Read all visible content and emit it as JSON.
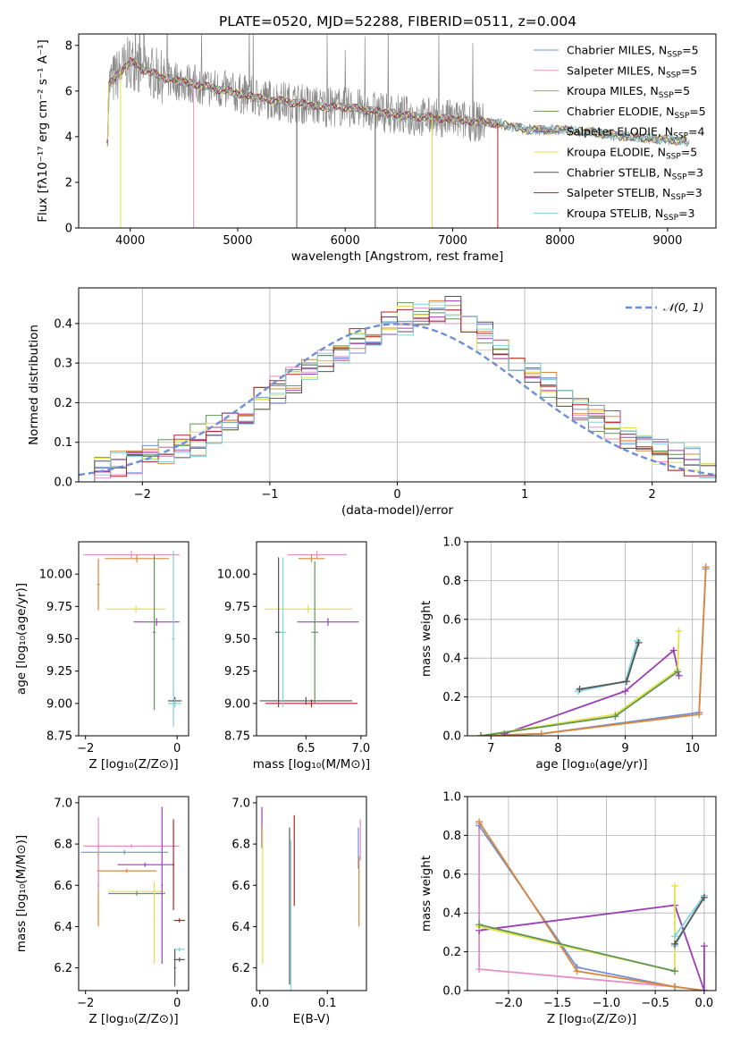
{
  "title": "PLATE=0520, MJD=52288, FIBERID=0511, z=0.004",
  "colors": {
    "chabrier_miles": "#6f8fd6",
    "salpeter_miles": "#e38fc6",
    "kroupa_miles": "#d9883a",
    "chabrier_elodie": "#5e9455",
    "salpeter_elodie": "#9b3fb5",
    "kroupa_elodie": "#e3e04a",
    "chabrier_stelib": "#555555",
    "salpeter_stelib": "#b52025",
    "kroupa_stelib": "#7ed3dc",
    "data": "#8a8a8a",
    "gaussian": "#6d8fd8"
  },
  "chart_data": [
    {
      "id": "spectrum",
      "type": "line",
      "title": "PLATE=0520, MJD=52288, FIBERID=0511, z=0.004",
      "xlabel": "wavelength [Angstrom, rest frame]",
      "ylabel": "Flux [fλ10⁻¹⁷ erg cm⁻² s⁻¹ A⁻¹]",
      "xlim": [
        3520,
        9450
      ],
      "ylim": [
        0,
        8.5
      ],
      "xticks": [
        4000,
        5000,
        6000,
        7000,
        8000,
        9000
      ],
      "yticks": [
        0,
        2,
        4,
        6,
        8
      ],
      "legend_location": "top-right",
      "legend": [
        "Chabrier MILES, N_SSP=5",
        "Salpeter MILES, N_SSP=5",
        "Kroupa MILES, N_SSP=5",
        "Chabrier ELODIE, N_SSP=5",
        "Salpeter ELODIE, N_SSP=4",
        "Kroupa ELODIE, N_SSP=5",
        "Chabrier STELIB, N_SSP=3",
        "Salpeter STELIB, N_SSP=3",
        "Kroupa STELIB, N_SSP=3"
      ],
      "continuum": {
        "x": [
          3800,
          3900,
          4000,
          4100,
          4300,
          4500,
          4800,
          5000,
          5200,
          5500,
          5800,
          6000,
          6300,
          6600,
          6900,
          7100,
          7400,
          7700,
          8000,
          8300,
          8600,
          8900,
          9200
        ],
        "y": [
          6.3,
          6.8,
          7.3,
          7.0,
          6.6,
          6.4,
          6.1,
          5.9,
          5.7,
          5.5,
          5.3,
          5.3,
          5.1,
          4.9,
          4.8,
          4.7,
          4.6,
          4.3,
          4.3,
          4.2,
          4.0,
          3.9,
          3.8
        ]
      },
      "model_dropouts": [
        {
          "series": "kroupa_elodie",
          "x": 3910
        },
        {
          "series": "salpeter_miles",
          "x": 4590
        },
        {
          "series": "kroupa_elodie",
          "x": 6810
        },
        {
          "series": "salpeter_stelib",
          "x": 7420
        },
        {
          "series": "chabrier_stelib",
          "x": 5550
        },
        {
          "series": "chabrier_stelib",
          "x": 6280
        }
      ]
    },
    {
      "id": "residuals",
      "type": "bar",
      "xlabel": "(data-model)/error",
      "ylabel": "Normed distribution",
      "xlim": [
        -2.5,
        2.5
      ],
      "ylim": [
        0,
        0.49
      ],
      "xticks": [
        -2,
        -1,
        0,
        1,
        2
      ],
      "yticks": [
        0.0,
        0.1,
        0.2,
        0.3,
        0.4
      ],
      "grid": true,
      "legend": [
        "𝒩(0, 1)"
      ],
      "legend_location": "top-right",
      "bin_width": 0.1,
      "series": [
        {
          "name": "Chabrier MILES",
          "values": [
            0.03,
            0.04,
            0.05,
            0.05,
            0.07,
            0.07,
            0.08,
            0.09,
            0.12,
            0.15,
            0.17,
            0.2,
            0.22,
            0.25,
            0.28,
            0.3,
            0.32,
            0.35,
            0.37,
            0.39,
            0.4,
            0.42,
            0.44,
            0.45,
            0.43,
            0.38,
            0.34,
            0.3,
            0.28,
            0.25,
            0.22,
            0.19,
            0.17,
            0.15,
            0.12,
            0.1,
            0.08,
            0.07,
            0.06,
            0.04
          ]
        },
        {
          "name": "Kroupa ELODIE",
          "values": [
            0.02,
            0.03,
            0.04,
            0.05,
            0.06,
            0.08,
            0.1,
            0.12,
            0.14,
            0.16,
            0.19,
            0.21,
            0.24,
            0.27,
            0.29,
            0.32,
            0.34,
            0.37,
            0.39,
            0.41,
            0.43,
            0.44,
            0.43,
            0.41,
            0.39,
            0.36,
            0.33,
            0.3,
            0.27,
            0.24,
            0.21,
            0.18,
            0.15,
            0.13,
            0.11,
            0.09,
            0.07,
            0.05,
            0.04,
            0.03
          ]
        }
      ],
      "gaussian": {
        "mean": 0,
        "sigma": 1,
        "peak": 0.399
      }
    },
    {
      "id": "age-vs-Z",
      "type": "scatter",
      "xlabel": "Z [log₁₀(Z/Z⊙)]",
      "ylabel": "age  [log₁₀(age/yr)]",
      "xlim": [
        -2.15,
        0.25
      ],
      "ylim": [
        8.75,
        10.25
      ],
      "xticks": [
        -2,
        0
      ],
      "yticks": [
        8.75,
        9.0,
        9.25,
        9.5,
        9.75,
        10.0
      ],
      "points": [
        {
          "series": "salpeter_miles",
          "x": -1.0,
          "y": 10.15,
          "xerr": 1.05,
          "yerr": 0.03
        },
        {
          "series": "kroupa_miles",
          "x": -0.88,
          "y": 10.12,
          "xerr": 0.7,
          "yerr": 0.03
        },
        {
          "series": "kroupa_miles",
          "x": -1.72,
          "y": 9.92,
          "xerr": 0.03,
          "yerr": 0.2
        },
        {
          "series": "kroupa_elodie",
          "x": -0.9,
          "y": 9.73,
          "xerr": 0.65,
          "yerr": 0.03
        },
        {
          "series": "salpeter_elodie",
          "x": -0.45,
          "y": 9.63,
          "xerr": 0.5,
          "yerr": 0.03
        },
        {
          "series": "chabrier_elodie",
          "x": -0.5,
          "y": 9.55,
          "xerr": 0.03,
          "yerr": 0.6
        },
        {
          "series": "kroupa_stelib",
          "x": -0.08,
          "y": 9.5,
          "xerr": 0.03,
          "yerr": 0.68
        },
        {
          "series": "chabrier_stelib",
          "x": -0.05,
          "y": 9.02,
          "xerr": 0.15,
          "yerr": 0.03
        },
        {
          "series": "kroupa_stelib",
          "x": -0.05,
          "y": 9.0,
          "xerr": 0.15,
          "yerr": 0.03
        }
      ]
    },
    {
      "id": "age-vs-mass",
      "type": "scatter",
      "xlabel": "mass [log₁₀(M/M⊙)]",
      "ylabel": "",
      "xlim": [
        6.05,
        7.05
      ],
      "ylim": [
        8.75,
        10.25
      ],
      "xticks": [
        6.5,
        7.0
      ],
      "yticks": [
        8.75,
        9.0,
        9.25,
        9.5,
        9.75,
        10.0
      ],
      "points": [
        {
          "series": "salpeter_miles",
          "x": 6.6,
          "y": 10.15,
          "xerr": 0.27,
          "yerr": 0.03
        },
        {
          "series": "kroupa_miles",
          "x": 6.55,
          "y": 10.12,
          "xerr": 0.12,
          "yerr": 0.03
        },
        {
          "series": "kroupa_elodie",
          "x": 6.52,
          "y": 9.73,
          "xerr": 0.4,
          "yerr": 0.03
        },
        {
          "series": "salpeter_elodie",
          "x": 6.7,
          "y": 9.63,
          "xerr": 0.28,
          "yerr": 0.03
        },
        {
          "series": "chabrier_stelib",
          "x": 6.5,
          "y": 9.02,
          "xerr": 0.42,
          "yerr": 0.03
        },
        {
          "series": "salpeter_stelib",
          "x": 6.55,
          "y": 9.0,
          "xerr": 0.42,
          "yerr": 0.03
        },
        {
          "series": "chabrier_stelib",
          "x": 6.25,
          "y": 9.55,
          "xerr": 0.03,
          "yerr": 0.58
        },
        {
          "series": "kroupa_stelib",
          "x": 6.29,
          "y": 9.55,
          "xerr": 0.03,
          "yerr": 0.58
        },
        {
          "series": "chabrier_elodie",
          "x": 6.58,
          "y": 9.55,
          "xerr": 0.03,
          "yerr": 0.55
        }
      ]
    },
    {
      "id": "weight-vs-age",
      "type": "line",
      "xlabel": "age  [log₁₀(age/yr)]",
      "ylabel": "mass weight",
      "xlim": [
        6.65,
        10.35
      ],
      "ylim": [
        0,
        1.0
      ],
      "xticks": [
        7,
        8,
        9,
        10
      ],
      "yticks": [
        0.0,
        0.2,
        0.4,
        0.6,
        0.8,
        1.0
      ],
      "grid": true,
      "series": [
        {
          "key": "chabrier_miles",
          "x": [
            6.85,
            7.75,
            10.1,
            10.2
          ],
          "y": [
            0.0,
            0.01,
            0.12,
            0.86
          ]
        },
        {
          "key": "kroupa_miles",
          "x": [
            6.85,
            7.75,
            10.1,
            10.2
          ],
          "y": [
            0.0,
            0.01,
            0.11,
            0.87
          ]
        },
        {
          "key": "salpeter_elodie",
          "x": [
            7.2,
            9.0,
            9.72,
            9.8
          ],
          "y": [
            0.01,
            0.23,
            0.44,
            0.31
          ]
        },
        {
          "key": "kroupa_elodie",
          "x": [
            6.85,
            8.85,
            9.78,
            9.8
          ],
          "y": [
            0.0,
            0.11,
            0.34,
            0.54
          ]
        },
        {
          "key": "chabrier_elodie",
          "x": [
            6.85,
            8.85,
            9.78
          ],
          "y": [
            0.0,
            0.1,
            0.33
          ]
        },
        {
          "key": "kroupa_stelib",
          "x": [
            8.3,
            9.0,
            9.18
          ],
          "y": [
            0.23,
            0.28,
            0.49
          ]
        },
        {
          "key": "chabrier_stelib",
          "x": [
            8.32,
            9.02,
            9.2
          ],
          "y": [
            0.24,
            0.28,
            0.48
          ]
        }
      ]
    },
    {
      "id": "mass-vs-Z",
      "type": "scatter",
      "xlabel": "Z [log₁₀(Z/Z⊙)]",
      "ylabel": "mass [log₁₀(M/M⊙)]",
      "xlim": [
        -2.15,
        0.25
      ],
      "ylim": [
        6.09,
        7.03
      ],
      "xticks": [
        -2,
        0
      ],
      "yticks": [
        6.2,
        6.4,
        6.6,
        6.8,
        7.0
      ],
      "points": [
        {
          "series": "salpeter_miles",
          "x": -1.0,
          "y": 6.79,
          "xerr": 1.05,
          "yerr": 0.01
        },
        {
          "series": "chabrier_miles",
          "x": -1.15,
          "y": 6.76,
          "xerr": 0.95,
          "yerr": 0.01
        },
        {
          "series": "salpeter_elodie",
          "x": -0.7,
          "y": 6.7,
          "xerr": 0.6,
          "yerr": 0.01
        },
        {
          "series": "kroupa_miles",
          "x": -1.1,
          "y": 6.67,
          "xerr": 0.65,
          "yerr": 0.01
        },
        {
          "series": "kroupa_elodie",
          "x": -0.88,
          "y": 6.57,
          "xerr": 0.62,
          "yerr": 0.01
        },
        {
          "series": "chabrier_elodie",
          "x": -0.88,
          "y": 6.56,
          "xerr": 0.62,
          "yerr": 0.01
        },
        {
          "series": "kroupa_miles",
          "x": -1.72,
          "y": 6.6,
          "xerr": 0.02,
          "yerr": 0.2
        },
        {
          "series": "salpeter_miles",
          "x": -1.72,
          "y": 6.75,
          "xerr": 0.02,
          "yerr": 0.18
        },
        {
          "series": "kroupa_elodie",
          "x": -0.5,
          "y": 6.42,
          "xerr": 0.02,
          "yerr": 0.2
        },
        {
          "series": "salpeter_elodie",
          "x": -0.33,
          "y": 6.6,
          "xerr": 0.02,
          "yerr": 0.38
        },
        {
          "series": "salpeter_stelib",
          "x": -0.08,
          "y": 6.7,
          "xerr": 0.02,
          "yerr": 0.22
        },
        {
          "series": "salpeter_stelib",
          "x": 0.05,
          "y": 6.43,
          "xerr": 0.12,
          "yerr": 0.01
        },
        {
          "series": "kroupa_stelib",
          "x": 0.05,
          "y": 6.29,
          "xerr": 0.12,
          "yerr": 0.01
        },
        {
          "series": "chabrier_stelib",
          "x": 0.05,
          "y": 6.24,
          "xerr": 0.12,
          "yerr": 0.01
        },
        {
          "series": "chabrier_stelib",
          "x": -0.05,
          "y": 6.2,
          "xerr": 0.02,
          "yerr": 0.09
        }
      ]
    },
    {
      "id": "mass-vs-ebv",
      "type": "scatter",
      "xlabel": "E(B-V)",
      "ylabel": "",
      "xlim": [
        -0.005,
        0.158
      ],
      "ylim": [
        6.09,
        7.03
      ],
      "xticks": [
        0.0,
        0.1
      ],
      "yticks": [
        6.2,
        6.4,
        6.6,
        6.8,
        7.0
      ],
      "points": [
        {
          "series": "salpeter_elodie",
          "x": 0.003,
          "y": 6.88,
          "xerr": 0.0,
          "yerr": 0.1
        },
        {
          "series": "kroupa_elodie",
          "x": 0.004,
          "y": 6.55,
          "xerr": 0.0,
          "yerr": 0.33
        },
        {
          "series": "chabrier_stelib",
          "x": 0.044,
          "y": 6.5,
          "xerr": 0.0,
          "yerr": 0.38
        },
        {
          "series": "kroupa_stelib",
          "x": 0.046,
          "y": 6.42,
          "xerr": 0.0,
          "yerr": 0.4
        },
        {
          "series": "salpeter_stelib",
          "x": 0.051,
          "y": 6.72,
          "xerr": 0.0,
          "yerr": 0.22
        },
        {
          "series": "chabrier_miles",
          "x": 0.146,
          "y": 6.78,
          "xerr": 0.0,
          "yerr": 0.1
        },
        {
          "series": "kroupa_miles",
          "x": 0.147,
          "y": 6.57,
          "xerr": 0.0,
          "yerr": 0.17
        },
        {
          "series": "salpeter_miles",
          "x": 0.149,
          "y": 6.82,
          "xerr": 0.0,
          "yerr": 0.1
        }
      ]
    },
    {
      "id": "weight-vs-Z",
      "type": "line",
      "xlabel": "Z [log₁₀(Z/Z⊙)]",
      "ylabel": "mass weight",
      "xlim": [
        -2.42,
        0.12
      ],
      "ylim": [
        0,
        1.0
      ],
      "xticks": [
        -2.0,
        -1.5,
        -1.0,
        -0.5,
        0.0
      ],
      "yticks": [
        0.0,
        0.2,
        0.4,
        0.6,
        0.8,
        1.0
      ],
      "grid": true,
      "series": [
        {
          "key": "salpeter_miles",
          "x": [
            -2.3,
            -2.3,
            -0.3,
            0.0
          ],
          "y": [
            0.86,
            0.11,
            0.02,
            0.0
          ]
        },
        {
          "key": "chabrier_miles",
          "x": [
            -2.3,
            -1.3,
            -0.3,
            0.0
          ],
          "y": [
            0.85,
            0.12,
            0.02,
            0.0
          ]
        },
        {
          "key": "kroupa_miles",
          "x": [
            -2.3,
            -1.3,
            -0.3,
            0.0
          ],
          "y": [
            0.87,
            0.1,
            0.02,
            0.0
          ]
        },
        {
          "key": "salpeter_elodie",
          "x": [
            -2.3,
            -0.3,
            0.0,
            0.0
          ],
          "y": [
            0.31,
            0.44,
            0.0,
            0.23
          ]
        },
        {
          "key": "kroupa_elodie",
          "x": [
            -2.3,
            -0.3,
            -0.3
          ],
          "y": [
            0.33,
            0.1,
            0.54
          ]
        },
        {
          "key": "chabrier_elodie",
          "x": [
            -2.3,
            -0.3
          ],
          "y": [
            0.34,
            0.1
          ]
        },
        {
          "key": "kroupa_stelib",
          "x": [
            -0.3,
            0.0,
            -0.3
          ],
          "y": [
            0.23,
            0.49,
            0.28
          ]
        },
        {
          "key": "chabrier_stelib",
          "x": [
            -0.3,
            0.0
          ],
          "y": [
            0.24,
            0.48
          ]
        }
      ]
    }
  ]
}
